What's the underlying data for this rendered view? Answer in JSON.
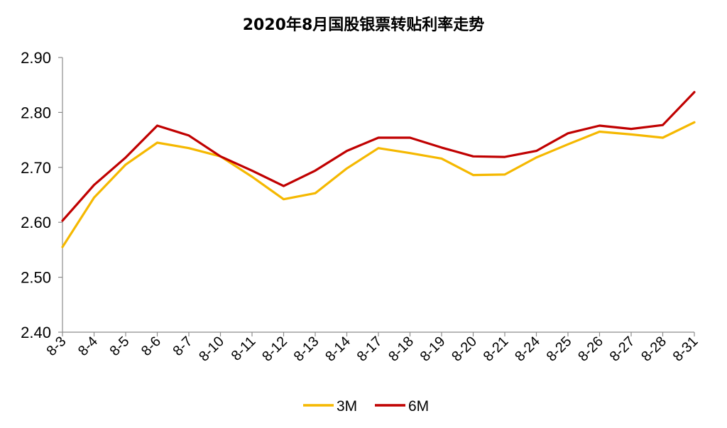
{
  "chart_data": {
    "type": "line",
    "title": "2020年8月国股银票转贴利率走势",
    "categories": [
      "8-3",
      "8-4",
      "8-5",
      "8-6",
      "8-7",
      "8-10",
      "8-11",
      "8-12",
      "8-13",
      "8-14",
      "8-17",
      "8-18",
      "8-19",
      "8-20",
      "8-21",
      "8-24",
      "8-25",
      "8-26",
      "8-27",
      "8-28",
      "8-31"
    ],
    "series": [
      {
        "name": "3M",
        "color": "#F5B800",
        "values": [
          2.555,
          2.645,
          2.705,
          2.745,
          2.735,
          2.72,
          2.683,
          2.642,
          2.653,
          2.698,
          2.735,
          2.726,
          2.716,
          2.686,
          2.687,
          2.718,
          2.742,
          2.765,
          2.76,
          2.754,
          2.782
        ]
      },
      {
        "name": "6M",
        "color": "#C00000",
        "values": [
          2.603,
          2.668,
          2.718,
          2.776,
          2.758,
          2.72,
          2.694,
          2.666,
          2.694,
          2.73,
          2.754,
          2.754,
          2.736,
          2.72,
          2.719,
          2.73,
          2.762,
          2.776,
          2.77,
          2.777,
          2.837
        ]
      }
    ],
    "ylim": [
      2.4,
      2.9
    ],
    "yticks": [
      "2.40",
      "2.50",
      "2.60",
      "2.70",
      "2.80",
      "2.90"
    ],
    "grid": false,
    "legend": "bottom"
  }
}
